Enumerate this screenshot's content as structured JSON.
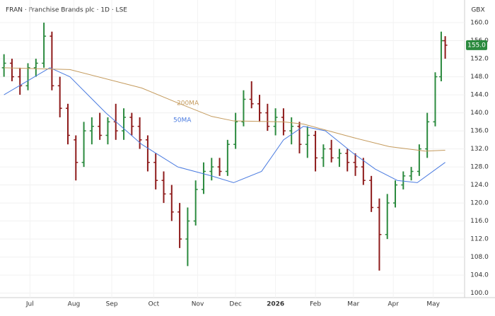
{
  "chart_data": {
    "type": "ohlc",
    "title": "FRAN · Franchise Brands plc · 1D · LSE",
    "currency": "GBX",
    "up_color": "#2b8a3e",
    "down_color": "#8e1b1b",
    "grid": true,
    "xlim": [
      0,
      232
    ],
    "xticks": [
      {
        "value": 15,
        "label": "Jul"
      },
      {
        "value": 37,
        "label": "Aug"
      },
      {
        "value": 56,
        "label": "Sep"
      },
      {
        "value": 77,
        "label": "Oct"
      },
      {
        "value": 99,
        "label": "Nov"
      },
      {
        "value": 118,
        "label": "Dec"
      },
      {
        "value": 138,
        "label": "2026"
      },
      {
        "value": 158,
        "label": "Feb"
      },
      {
        "value": 177,
        "label": "Mar"
      },
      {
        "value": 197,
        "label": "Apr"
      },
      {
        "value": 217,
        "label": "May"
      }
    ],
    "ylim": [
      99,
      162
    ],
    "yticks": [
      {
        "value": 100,
        "label": "100.0"
      },
      {
        "value": 104,
        "label": "104.0"
      },
      {
        "value": 108,
        "label": "108.0"
      },
      {
        "value": 112,
        "label": "112.0"
      },
      {
        "value": 116,
        "label": "116.0"
      },
      {
        "value": 120,
        "label": "120.0"
      },
      {
        "value": 124,
        "label": "124.0"
      },
      {
        "value": 128,
        "label": "128.0"
      },
      {
        "value": 132,
        "label": "132.0"
      },
      {
        "value": 136,
        "label": "136.0"
      },
      {
        "value": 140,
        "label": "140.0"
      },
      {
        "value": 144,
        "label": "144.0"
      },
      {
        "value": 148,
        "label": "148.0"
      },
      {
        "value": 152,
        "label": "152.0"
      },
      {
        "value": 156,
        "label": "156.0"
      },
      {
        "value": 160,
        "label": "160.0"
      }
    ],
    "last_price": {
      "value": 155,
      "label": "155.0"
    },
    "x": [
      2,
      6,
      10,
      14,
      18,
      22,
      26,
      30,
      34,
      38,
      42,
      46,
      50,
      54,
      58,
      62,
      66,
      70,
      74,
      78,
      82,
      86,
      90,
      94,
      98,
      102,
      106,
      110,
      114,
      118,
      122,
      126,
      130,
      134,
      138,
      142,
      146,
      150,
      154,
      158,
      162,
      166,
      170,
      174,
      178,
      182,
      186,
      190,
      194,
      198,
      202,
      206,
      210,
      214,
      218,
      221,
      223
    ],
    "open": [
      150,
      151,
      148,
      146,
      150,
      151,
      157,
      146,
      141,
      134,
      129,
      136,
      137,
      135,
      138,
      136,
      139,
      137,
      134,
      129,
      125,
      122,
      118,
      112,
      116,
      123,
      127,
      128,
      127,
      133,
      138,
      143,
      142,
      140,
      137,
      139,
      136,
      137,
      133,
      135,
      130,
      132,
      130,
      131,
      129,
      128,
      125,
      119,
      113,
      120,
      124,
      126,
      127,
      132,
      138,
      148,
      156
    ],
    "high": [
      153,
      152,
      150,
      151,
      152,
      160,
      158,
      148,
      142,
      135,
      138,
      139,
      140,
      139,
      142,
      141,
      140,
      139,
      135,
      131,
      127,
      124,
      120,
      119,
      125,
      129,
      130,
      130,
      134,
      140,
      145,
      147,
      144,
      142,
      141,
      141,
      139,
      138,
      137,
      136,
      133,
      134,
      132,
      132,
      131,
      130,
      126,
      121,
      122,
      125,
      127,
      128,
      133,
      140,
      149,
      158,
      157
    ],
    "low": [
      148,
      147,
      144,
      145,
      148,
      150,
      145,
      139,
      133,
      125,
      128,
      133,
      134,
      133,
      134,
      134,
      135,
      132,
      127,
      123,
      120,
      116,
      110,
      106,
      115,
      122,
      125,
      126,
      126,
      132,
      137,
      141,
      138,
      136,
      135,
      135,
      133,
      131,
      130,
      127,
      128,
      129,
      128,
      127,
      126,
      124,
      118,
      105,
      112,
      119,
      123,
      125,
      126,
      130,
      137,
      147,
      152
    ],
    "close": [
      151,
      148,
      146,
      150,
      151,
      157,
      146,
      141,
      135,
      129,
      136,
      137,
      135,
      138,
      136,
      139,
      137,
      134,
      129,
      125,
      122,
      118,
      112,
      116,
      123,
      127,
      128,
      127,
      133,
      138,
      143,
      142,
      140,
      137,
      139,
      136,
      137,
      133,
      135,
      130,
      132,
      130,
      131,
      129,
      128,
      125,
      119,
      113,
      120,
      124,
      126,
      127,
      132,
      138,
      148,
      156,
      155
    ],
    "overlays": [
      {
        "name": "50MA",
        "color": "#4a7be0",
        "x": [
          2,
          25,
          35,
          53,
          71,
          89,
          106,
          117,
          131,
          142,
          152,
          163,
          177,
          188,
          199,
          209,
          223
        ],
        "values": [
          144,
          150,
          148,
          140,
          133,
          128,
          126,
          124.5,
          127,
          134,
          137,
          136,
          131,
          127.5,
          125,
          124.5,
          129
        ]
      },
      {
        "name": "200MA",
        "color": "#c49a5c",
        "x": [
          2,
          35,
          71,
          89,
          106,
          117,
          142,
          152,
          177,
          195,
          213,
          223
        ],
        "values": [
          150,
          149.6,
          145.5,
          142.2,
          139.2,
          138.2,
          138,
          137.5,
          134.5,
          132.5,
          131.5,
          131.7
        ]
      }
    ]
  }
}
